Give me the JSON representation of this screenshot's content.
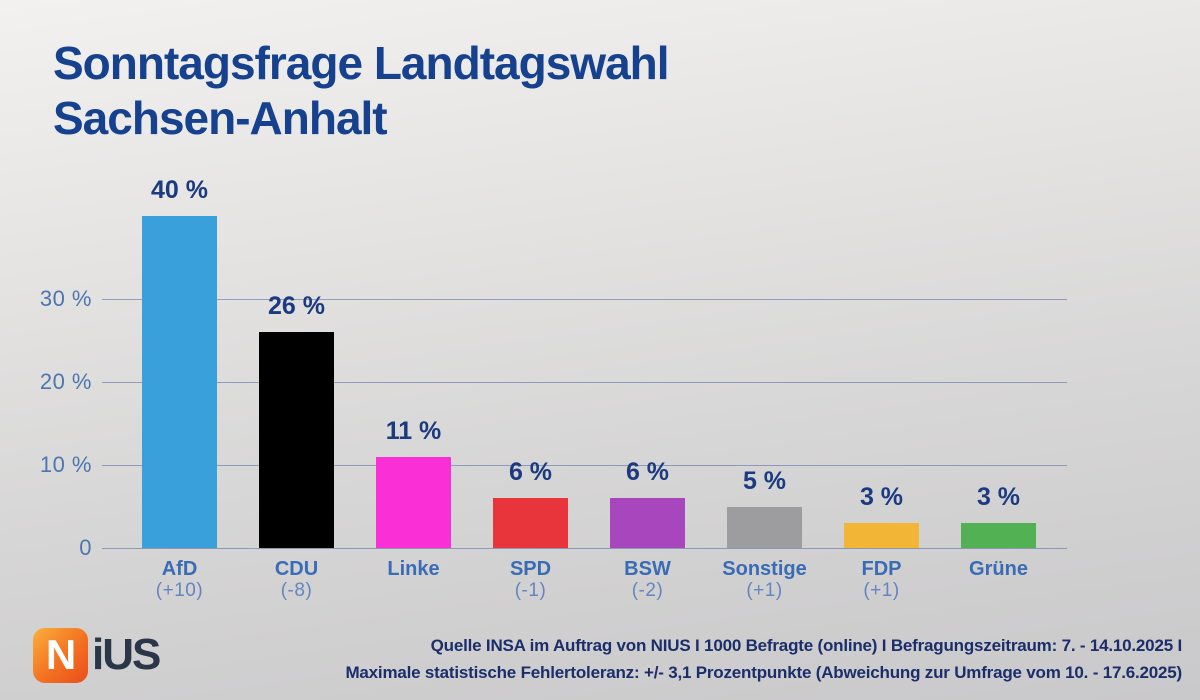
{
  "title": {
    "line1": "Sonntagsfrage Landtagswahl",
    "line2": "Sachsen-Anhalt"
  },
  "chart_data": {
    "type": "bar",
    "title": "Sonntagsfrage Landtagswahl Sachsen-Anhalt",
    "categories": [
      "AfD",
      "CDU",
      "Linke",
      "SPD",
      "BSW",
      "Sonstige",
      "FDP",
      "Grüne"
    ],
    "changes": [
      "(+10)",
      "(-8)",
      "",
      "(-1)",
      "(-2)",
      "(+1)",
      "(+1)",
      ""
    ],
    "values": [
      40,
      26,
      11,
      6,
      6,
      5,
      3,
      3
    ],
    "value_labels": [
      "40 %",
      "26 %",
      "11 %",
      "6 %",
      "6 %",
      "5 %",
      "3 %",
      "3 %"
    ],
    "bar_colors": [
      "#3AA0DC",
      "#000000",
      "#FB2FD6",
      "#E8353C",
      "#A746BD",
      "#9D9DA0",
      "#F2B535",
      "#52B153"
    ],
    "yticks": [
      {
        "value": 0,
        "label": "0"
      },
      {
        "value": 10,
        "label": "10 %"
      },
      {
        "value": 20,
        "label": "20 %"
      },
      {
        "value": 30,
        "label": "30 %"
      }
    ],
    "ylim": [
      0,
      42
    ],
    "grid": true,
    "legend": false,
    "xlabel": "",
    "ylabel": ""
  },
  "footer": {
    "logo_boxed_letter": "N",
    "logo_rest": "iUS",
    "source_line1": "Quelle INSA im Auftrag von NIUS I 1000 Befragte (online) I Befragungszeitraum: 7. - 14.10.2025 I",
    "source_line2": "Maximale statistische Fehlertoleranz: +/- 3,1 Prozentpunkte (Abweichung zur Umfrage vom 10. - 17.6.2025)"
  },
  "colors": {
    "title_navy": "#15418F",
    "value_label_navy": "#1B3A80",
    "axis_label_blue": "#4D76B0",
    "party_label_blue": "#3A6CB5",
    "change_label_blue": "#6386C1",
    "grid_blue": "#657AAA",
    "footer_navy": "#1B2E6A",
    "logo_orange_start": "#FBB03B",
    "logo_orange_end": "#E94E1B",
    "logo_text_dark": "#2B3648"
  }
}
